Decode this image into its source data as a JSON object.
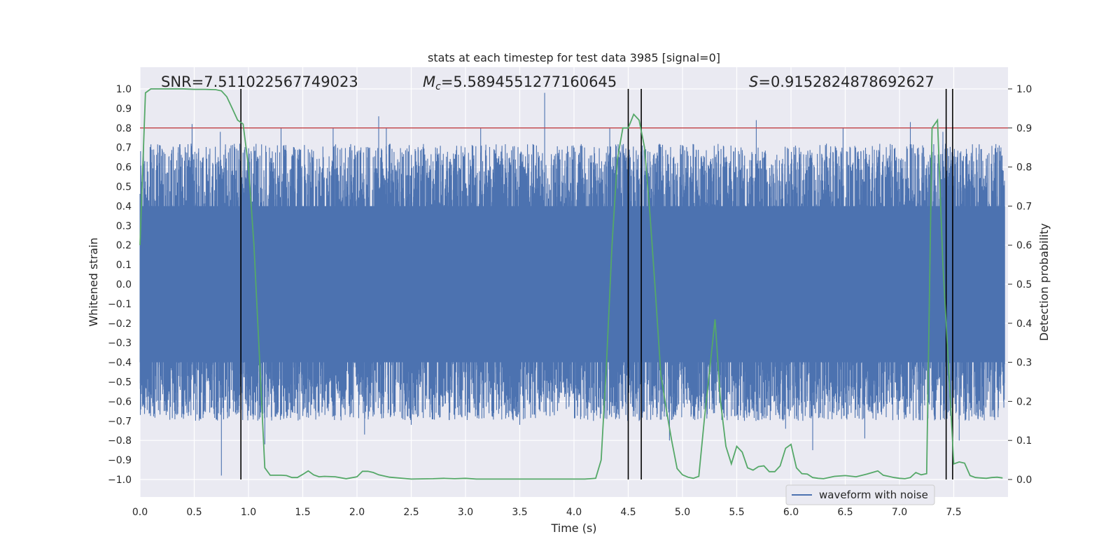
{
  "chart_data": {
    "type": "line",
    "title": "stats at each timestep for test data 3985 [signal=0]",
    "xlabel": "Time (s)",
    "ylabel": "Whitened strain",
    "ylabel_right": "Detection probability",
    "xlim": [
      0.0,
      8.0
    ],
    "ylim": [
      -1.1,
      1.1
    ],
    "ylim_right": [
      -0.05,
      1.03
    ],
    "x_ticks": [
      "0.0",
      "0.5",
      "1.0",
      "1.5",
      "2.0",
      "2.5",
      "3.0",
      "3.5",
      "4.0",
      "4.5",
      "5.0",
      "5.5",
      "6.0",
      "6.5",
      "7.0",
      "7.5"
    ],
    "y_ticks": [
      "1.0",
      "0.9",
      "0.8",
      "0.7",
      "0.6",
      "0.5",
      "0.4",
      "0.3",
      "0.2",
      "0.1",
      "0.0",
      "−0.1",
      "−0.2",
      "−0.3",
      "−0.4",
      "−0.5",
      "−0.6",
      "−0.7",
      "−0.8",
      "−0.9",
      "−1.0"
    ],
    "y_ticks_right": [
      "1.0",
      "0.9",
      "0.8",
      "0.7",
      "0.6",
      "0.5",
      "0.4",
      "0.3",
      "0.2",
      "0.1",
      "0.0"
    ],
    "grid": true,
    "legend": {
      "position": "bottom-right",
      "entries": [
        "waveform with noise"
      ]
    },
    "annotations": {
      "snr": "SNR=7.511022567749023",
      "mc_symbol": "M",
      "mc_sub": "c",
      "mc_value": "=5.5894551277160645",
      "s_symbol": "S",
      "s_value": "=0.9152824878692627"
    },
    "threshold": {
      "y_right": 0.9,
      "color": "#c44e52"
    },
    "event_lines_x": [
      0.93,
      4.5,
      4.62,
      7.43,
      7.49
    ],
    "waveform": {
      "name": "waveform with noise",
      "color": "#4c72b0",
      "samples": 8000,
      "band": 0.4,
      "spikes": [
        {
          "x": 0.74,
          "y": 0.78
        },
        {
          "x": 0.75,
          "y": -0.98
        },
        {
          "x": 1.15,
          "y": -0.82
        },
        {
          "x": 1.3,
          "y": 0.8
        },
        {
          "x": 1.78,
          "y": 0.8
        },
        {
          "x": 2.07,
          "y": -0.77
        },
        {
          "x": 2.2,
          "y": 0.86
        },
        {
          "x": 2.27,
          "y": 0.8
        },
        {
          "x": 3.14,
          "y": 0.8
        },
        {
          "x": 3.73,
          "y": 0.98
        },
        {
          "x": 4.33,
          "y": 0.8
        },
        {
          "x": 4.88,
          "y": -0.8
        },
        {
          "x": 5.68,
          "y": 0.84
        },
        {
          "x": 6.2,
          "y": -0.85
        },
        {
          "x": 6.68,
          "y": -0.79
        },
        {
          "x": 7.1,
          "y": 0.83
        },
        {
          "x": 7.4,
          "y": 0.78
        },
        {
          "x": 7.55,
          "y": -0.8
        },
        {
          "x": 0.48,
          "y": 0.82
        },
        {
          "x": 6.48,
          "y": 0.8
        },
        {
          "x": 2.5,
          "y": -0.72
        },
        {
          "x": 3.5,
          "y": -0.72
        },
        {
          "x": 5.95,
          "y": -0.74
        }
      ]
    },
    "probability": {
      "name": "detection probability",
      "color": "#55a868",
      "x": [
        0.0,
        0.05,
        0.1,
        0.2,
        0.3,
        0.4,
        0.5,
        0.6,
        0.7,
        0.75,
        0.8,
        0.85,
        0.9,
        0.95,
        1.0,
        1.05,
        1.1,
        1.15,
        1.2,
        1.3,
        1.35,
        1.4,
        1.45,
        1.5,
        1.55,
        1.6,
        1.65,
        1.7,
        1.8,
        1.9,
        2.0,
        2.05,
        2.1,
        2.15,
        2.2,
        2.3,
        2.5,
        2.7,
        2.8,
        2.9,
        3.0,
        3.1,
        3.3,
        3.5,
        3.7,
        3.9,
        4.0,
        4.1,
        4.15,
        4.2,
        4.25,
        4.3,
        4.35,
        4.4,
        4.45,
        4.5,
        4.55,
        4.6,
        4.65,
        4.7,
        4.75,
        4.8,
        4.85,
        4.9,
        4.95,
        5.0,
        5.05,
        5.1,
        5.15,
        5.2,
        5.25,
        5.3,
        5.35,
        5.4,
        5.45,
        5.5,
        5.55,
        5.6,
        5.65,
        5.7,
        5.75,
        5.8,
        5.85,
        5.9,
        5.95,
        6.0,
        6.05,
        6.1,
        6.15,
        6.2,
        6.25,
        6.3,
        6.4,
        6.5,
        6.6,
        6.7,
        6.8,
        6.85,
        6.9,
        6.95,
        7.0,
        7.05,
        7.1,
        7.15,
        7.2,
        7.25,
        7.3,
        7.35,
        7.4,
        7.45,
        7.5,
        7.55,
        7.6,
        7.65,
        7.7,
        7.75,
        7.8,
        7.85,
        7.9,
        7.95
      ],
      "y": [
        0.6,
        0.99,
        1.0,
        1.0,
        1.0,
        1.0,
        0.999,
        0.999,
        0.998,
        0.995,
        0.98,
        0.95,
        0.92,
        0.91,
        0.8,
        0.6,
        0.32,
        0.03,
        0.011,
        0.011,
        0.01,
        0.005,
        0.005,
        0.013,
        0.022,
        0.012,
        0.007,
        0.008,
        0.007,
        0.002,
        0.007,
        0.021,
        0.021,
        0.018,
        0.012,
        0.006,
        0.001,
        0.002,
        0.003,
        0.002,
        0.003,
        0.001,
        0.001,
        0.001,
        0.001,
        0.001,
        0.001,
        0.001,
        0.002,
        0.003,
        0.05,
        0.3,
        0.6,
        0.82,
        0.9,
        0.9,
        0.935,
        0.92,
        0.85,
        0.68,
        0.48,
        0.27,
        0.18,
        0.1,
        0.028,
        0.012,
        0.006,
        0.003,
        0.008,
        0.15,
        0.28,
        0.41,
        0.2,
        0.085,
        0.04,
        0.085,
        0.07,
        0.03,
        0.024,
        0.033,
        0.035,
        0.02,
        0.02,
        0.035,
        0.08,
        0.09,
        0.03,
        0.015,
        0.014,
        0.005,
        0.003,
        0.002,
        0.008,
        0.01,
        0.007,
        0.014,
        0.022,
        0.011,
        0.008,
        0.005,
        0.003,
        0.002,
        0.005,
        0.018,
        0.012,
        0.015,
        0.9,
        0.92,
        0.55,
        0.3,
        0.04,
        0.045,
        0.042,
        0.01,
        0.005,
        0.004,
        0.003,
        0.005,
        0.006,
        0.004
      ]
    }
  }
}
